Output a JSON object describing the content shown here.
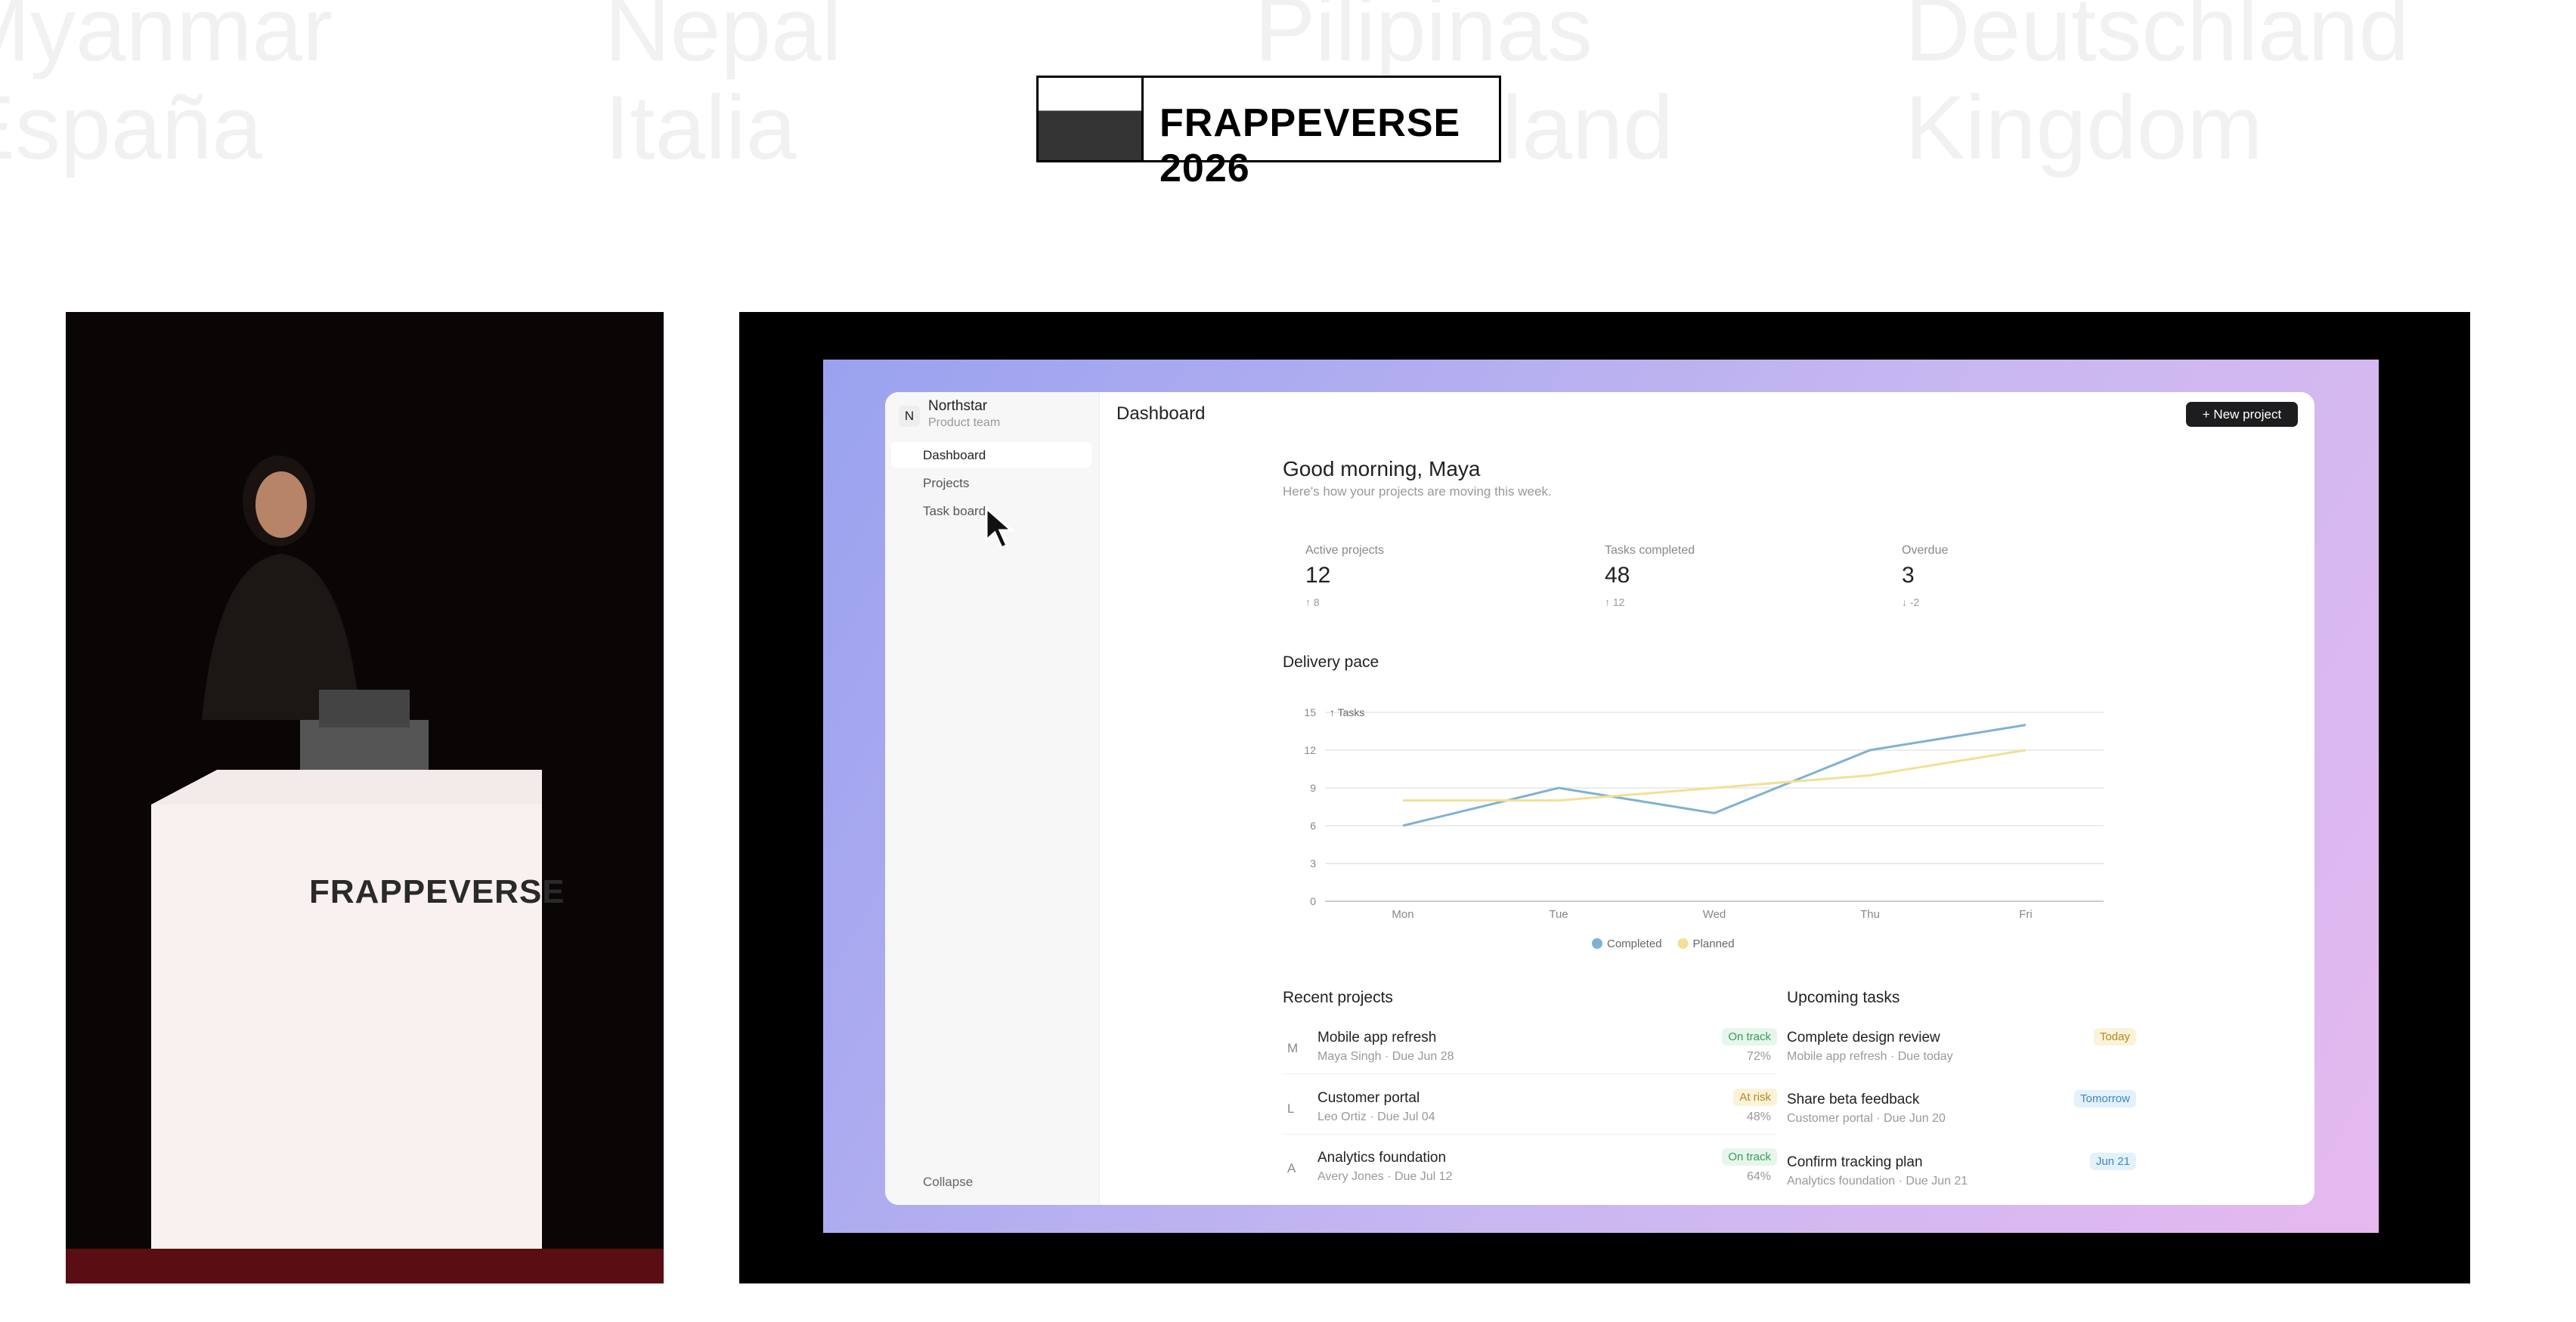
{
  "backdrop_words": [
    "Myanmar",
    "Nepal",
    "Pilipinas",
    "Deutschland",
    "España",
    "Italia",
    "Nederland",
    "Kingdom"
  ],
  "event_logo": "FRAPPEVERSE 2026",
  "podium_text": "FRAPPEVERSE",
  "app": {
    "workspace": {
      "initial": "N",
      "name": "Northstar",
      "team": "Product team"
    },
    "nav": [
      "Dashboard",
      "Projects",
      "Task board"
    ],
    "collapse": "Collapse",
    "page_title": "Dashboard",
    "new_project": "+ New project",
    "greeting": "Good morning, Maya",
    "subtitle": "Here's how your projects are moving this week.",
    "stats": [
      {
        "label": "Active projects",
        "value": "12",
        "delta": "↑ 8"
      },
      {
        "label": "Tasks completed",
        "value": "48",
        "delta": "↑ 12"
      },
      {
        "label": "Overdue",
        "value": "3",
        "delta": "↓ -2"
      }
    ],
    "recent_title": "Recent projects",
    "projects": [
      {
        "initial": "M",
        "name": "Mobile app refresh",
        "meta": "Maya Singh · Due Jun 28",
        "status": "On track",
        "progress": "72%"
      },
      {
        "initial": "L",
        "name": "Customer portal",
        "meta": "Leo Ortiz · Due Jul 04",
        "status": "At risk",
        "progress": "48%"
      },
      {
        "initial": "A",
        "name": "Analytics foundation",
        "meta": "Avery Jones · Due Jul 12",
        "status": "On track",
        "progress": "64%"
      }
    ],
    "tasks_title": "Upcoming tasks",
    "tasks": [
      {
        "name": "Complete design review",
        "meta": "Mobile app refresh · Due today",
        "due": "Today"
      },
      {
        "name": "Share beta feedback",
        "meta": "Customer portal · Due Jun 20",
        "due": "Tomorrow"
      },
      {
        "name": "Confirm tracking plan",
        "meta": "Analytics foundation · Due Jun 21",
        "due": "Jun 21"
      }
    ]
  },
  "chart_data": {
    "type": "line",
    "title": "Delivery pace",
    "y_label": "↑ Tasks",
    "categories": [
      "Mon",
      "Tue",
      "Wed",
      "Thu",
      "Fri"
    ],
    "series": [
      {
        "name": "Completed",
        "color": "#7fb2d2",
        "values": [
          6,
          9,
          7,
          12,
          14
        ]
      },
      {
        "name": "Planned",
        "color": "#f2e096",
        "values": [
          8,
          8,
          9,
          10,
          12
        ]
      }
    ],
    "ylim": [
      0,
      15
    ],
    "yticks": [
      0,
      3,
      6,
      9,
      12,
      15
    ],
    "grid": true
  }
}
